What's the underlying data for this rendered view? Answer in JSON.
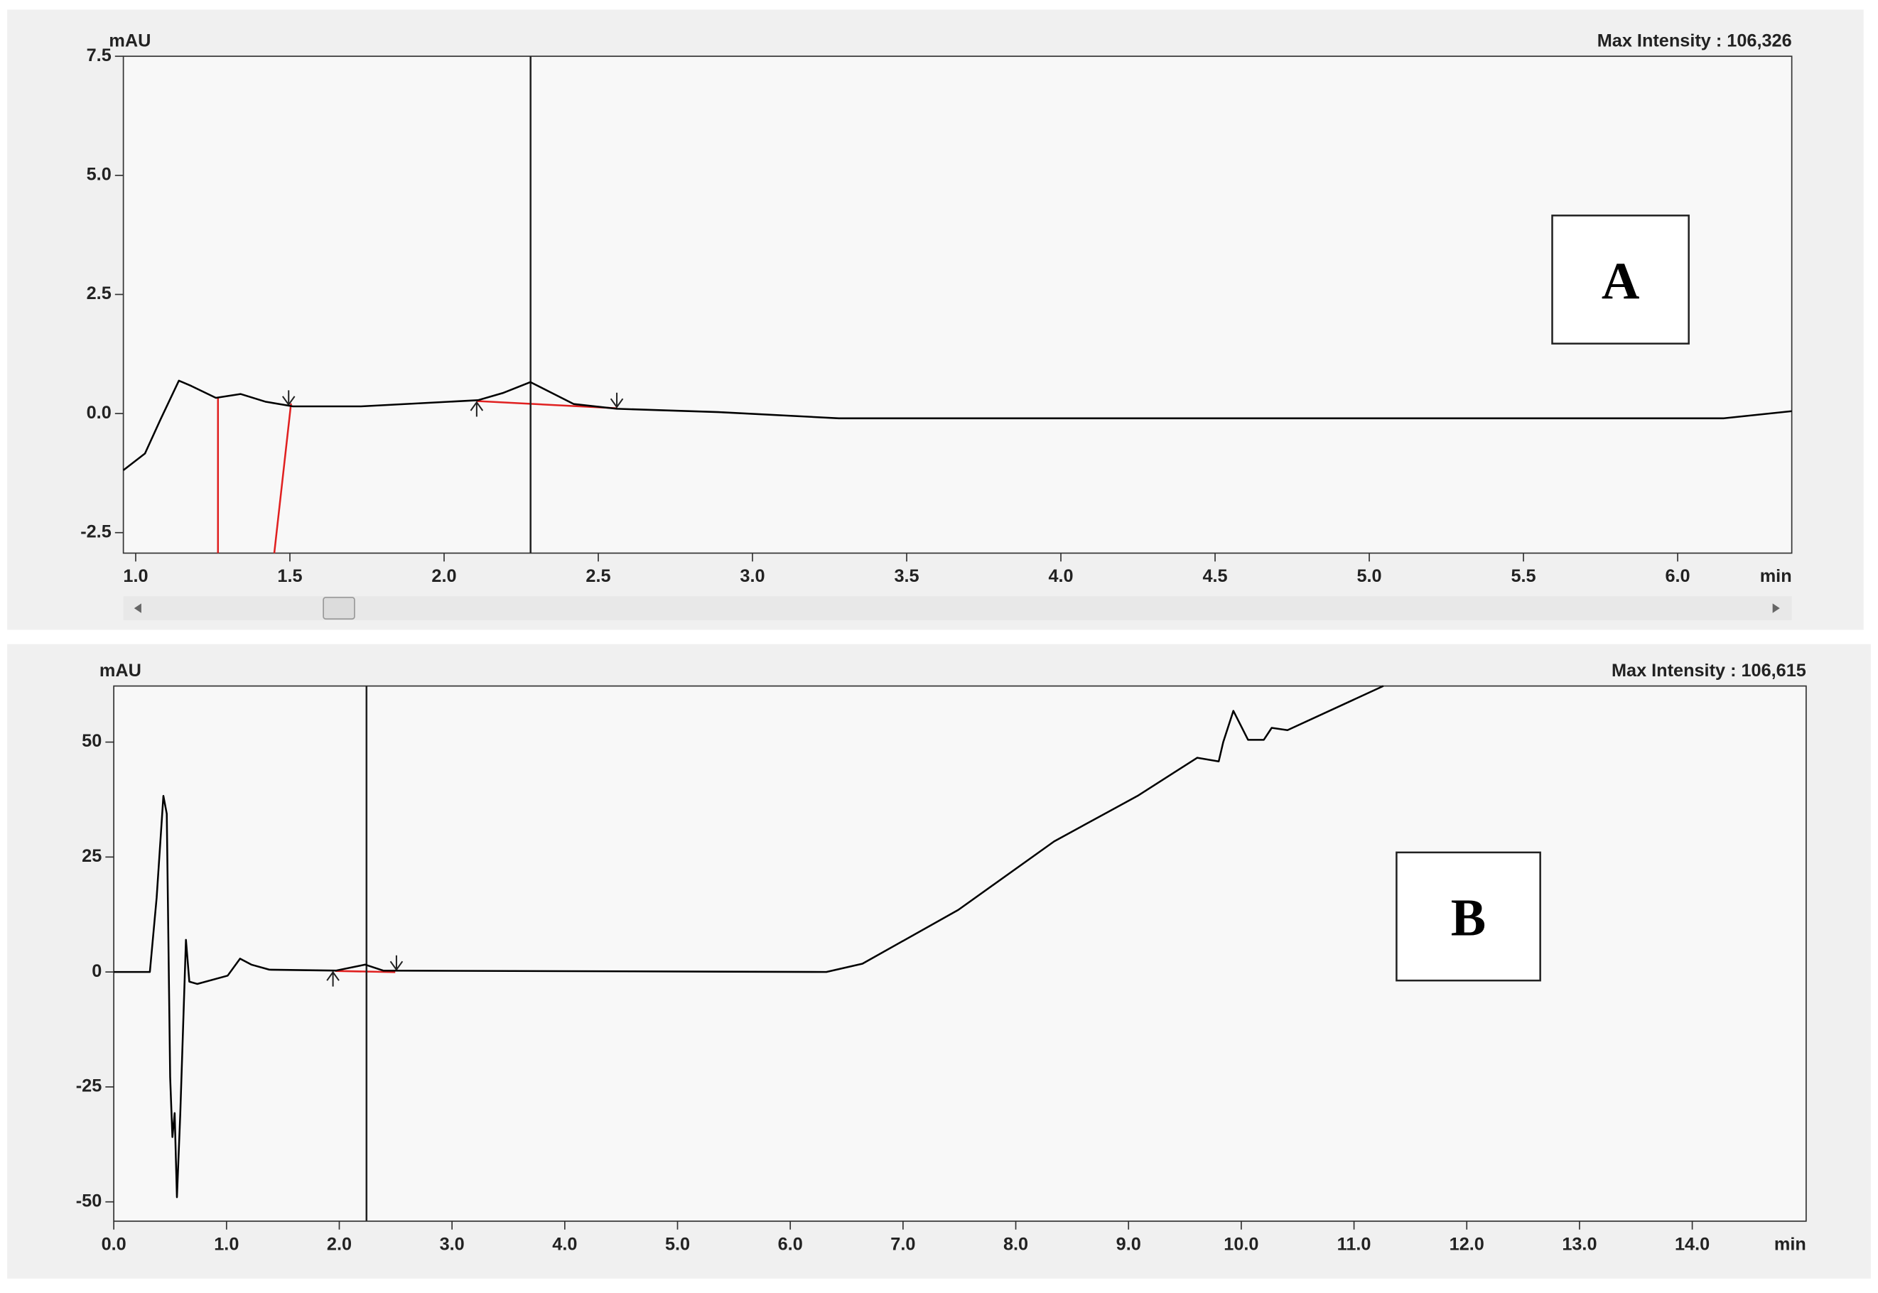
{
  "chart_data": [
    {
      "type": "line",
      "y_label": "mAU",
      "x_label": "min",
      "max_intensity": "Max Intensity : 106,326",
      "panel_label": "A",
      "xlim": [
        0.96,
        6.37
      ],
      "ylim": [
        -2.93,
        7.5
      ],
      "xticks": [
        {
          "value": 1.0,
          "label": "1.0"
        },
        {
          "value": 1.5,
          "label": "1.5"
        },
        {
          "value": 2.0,
          "label": "2.0"
        },
        {
          "value": 2.5,
          "label": "2.5"
        },
        {
          "value": 3.0,
          "label": "3.0"
        },
        {
          "value": 3.5,
          "label": "3.5"
        },
        {
          "value": 4.0,
          "label": "4.0"
        },
        {
          "value": 4.5,
          "label": "4.5"
        },
        {
          "value": 5.0,
          "label": "5.0"
        },
        {
          "value": 5.5,
          "label": "5.5"
        },
        {
          "value": 6.0,
          "label": "6.0"
        }
      ],
      "yticks": [
        {
          "value": 7.5,
          "label": "7.5"
        },
        {
          "value": 5.0,
          "label": "5.0"
        },
        {
          "value": 2.5,
          "label": "2.5"
        },
        {
          "value": 0.0,
          "label": "0.0"
        },
        {
          "value": -2.5,
          "label": "-2.5"
        }
      ],
      "color": "#000000",
      "x": [
        0.96,
        1.03,
        1.08,
        1.14,
        1.18,
        1.26,
        1.34,
        1.42,
        1.51,
        1.73,
        2.11,
        2.19,
        2.28,
        2.35,
        2.42,
        2.56,
        2.89,
        3.28,
        4.44,
        6.15,
        6.37
      ],
      "values": [
        -1.19,
        -0.84,
        -0.13,
        0.69,
        0.58,
        0.33,
        0.41,
        0.25,
        0.15,
        0.15,
        0.28,
        0.43,
        0.66,
        0.43,
        0.2,
        0.1,
        0.03,
        -0.1,
        -0.1,
        -0.1,
        0.05
      ]
    },
    {
      "type": "line",
      "y_label": "mAU",
      "x_label": "min",
      "max_intensity": "Max Intensity : 106,615",
      "panel_label": "B",
      "xlim": [
        0,
        15.01
      ],
      "ylim": [
        -54.2,
        62.2
      ],
      "xticks": [
        {
          "value": 0,
          "label": "0.0"
        },
        {
          "value": 1,
          "label": "1.0"
        },
        {
          "value": 2,
          "label": "2.0"
        },
        {
          "value": 3,
          "label": "3.0"
        },
        {
          "value": 4,
          "label": "4.0"
        },
        {
          "value": 5,
          "label": "5.0"
        },
        {
          "value": 6,
          "label": "6.0"
        },
        {
          "value": 7,
          "label": "7.0"
        },
        {
          "value": 8,
          "label": "8.0"
        },
        {
          "value": 9,
          "label": "9.0"
        },
        {
          "value": 10,
          "label": "10.0"
        },
        {
          "value": 11,
          "label": "11.0"
        },
        {
          "value": 12,
          "label": "12.0"
        },
        {
          "value": 13,
          "label": "13.0"
        },
        {
          "value": 14,
          "label": "14.0"
        }
      ],
      "yticks": [
        50,
        25,
        0,
        -25,
        -50
      ],
      "color": "#000000",
      "x": [
        0,
        0.32,
        0.38,
        0.44,
        0.47,
        0.5,
        0.52,
        0.54,
        0.56,
        0.59,
        0.64,
        0.67,
        0.74,
        1.01,
        1.12,
        1.22,
        1.38,
        1.97,
        2.23,
        2.39,
        6.32,
        6.64,
        7.49,
        8.34,
        9.08,
        9.61,
        9.8,
        9.84,
        9.93,
        10.06,
        10.2,
        10.27,
        10.41,
        11.26
      ],
      "values": [
        0,
        0,
        16.1,
        38.3,
        34.4,
        -22.9,
        -35.9,
        -30.7,
        -49.0,
        -30.7,
        7.0,
        -2.1,
        -2.6,
        -0.8,
        2.9,
        1.6,
        0.5,
        0.3,
        1.6,
        0.3,
        0,
        1.8,
        13.5,
        28.4,
        38.3,
        46.6,
        45.8,
        50.0,
        56.8,
        50.5,
        50.5,
        53.1,
        52.6,
        62.2
      ]
    }
  ]
}
